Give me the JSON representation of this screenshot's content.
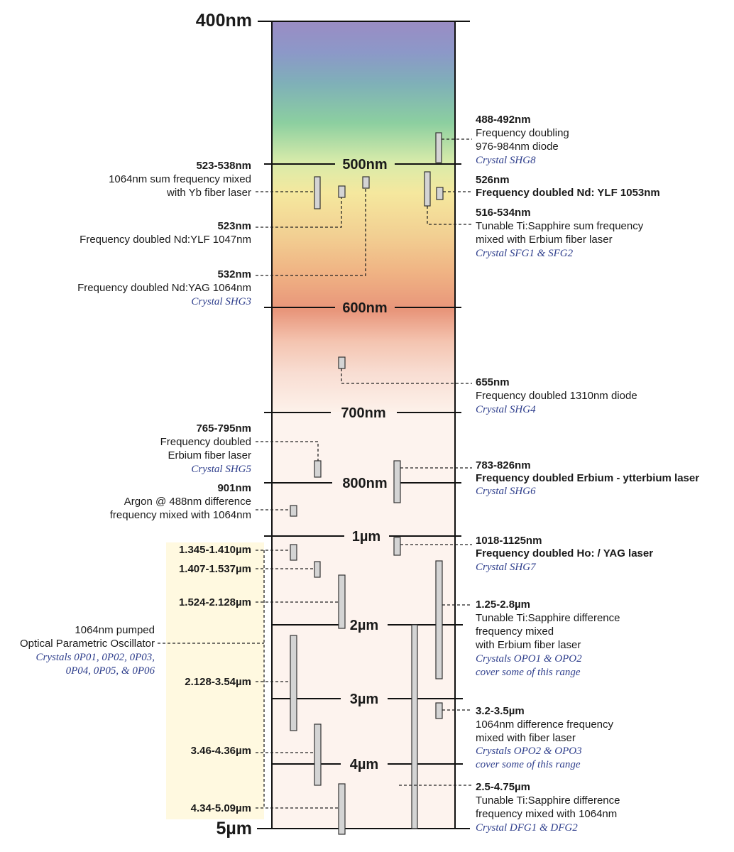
{
  "scale": {
    "labels": [
      "400nm",
      "500nm",
      "600nm",
      "700nm",
      "800nm",
      "1µm",
      "2µm",
      "3µm",
      "4µm",
      "5µm"
    ]
  },
  "annotations": {
    "r488": {
      "range": "488-492nm",
      "desc1": "Frequency doubling",
      "desc2": "976-984nm diode",
      "crystal": "Crystal SHG8"
    },
    "r523_538": {
      "range": "523-538nm",
      "desc1": "1064nm sum frequency mixed",
      "desc2": "with Yb fiber laser"
    },
    "r526": {
      "range": "526nm",
      "desc1": "Frequency doubled Nd: YLF 1053nm"
    },
    "r523": {
      "range": "523nm",
      "desc1": "Frequency doubled Nd:YLF 1047nm"
    },
    "r516": {
      "range": "516-534nm",
      "desc1": "Tunable Ti:Sapphire sum frequency",
      "desc2": "mixed with Erbium fiber laser",
      "crystal": "Crystal SFG1 & SFG2"
    },
    "r532": {
      "range": "532nm",
      "desc1": "Frequency doubled Nd:YAG 1064nm",
      "crystal": "Crystal SHG3"
    },
    "r655": {
      "range": "655nm",
      "desc1": "Frequency doubled 1310nm diode",
      "crystal": "Crystal SHG4"
    },
    "r765": {
      "range": "765-795nm",
      "desc1": "Frequency doubled",
      "desc2": "Erbium fiber laser",
      "crystal": "Crystal SHG5"
    },
    "r783": {
      "range": "783-826nm",
      "desc1": "Frequency doubled Erbium - ytterbium laser",
      "crystal": "Crystal SHG6"
    },
    "r901": {
      "range": "901nm",
      "desc1": "Argon @ 488nm  difference",
      "desc2": "frequency mixed with 1064nm"
    },
    "r1018": {
      "range": "1018-1125nm",
      "desc1": "Frequency doubled Ho: / YAG laser",
      "crystal": "Crystal SHG7"
    },
    "opo": {
      "ranges": [
        "1.345-1.410µm",
        "1.407-1.537µm",
        "1.524-2.128µm",
        "2.128-3.54µm",
        "3.46-4.36µm",
        "4.34-5.09µm"
      ],
      "desc1": "1064nm pumped",
      "desc2": "Optical Parametric Oscillator",
      "crystal1": "Crystals 0P01, 0P02, 0P03,",
      "crystal2": "0P04, 0P05, & 0P06"
    },
    "r125": {
      "range": "1.25-2.8µm",
      "desc1": "Tunable Ti:Sapphire difference",
      "desc2": "frequency mixed",
      "desc3": "with Erbium fiber laser",
      "crystal1": "Crystals OPO1 & OPO2",
      "crystal2": "cover some of this range"
    },
    "r32": {
      "range": "3.2-3.5µm",
      "desc1": "1064nm difference frequency",
      "desc2": "mixed with fiber laser",
      "crystal1": "Crystals OPO2 & OPO3",
      "crystal2": "cover some of this range"
    },
    "r25": {
      "range": "2.5-4.75µm",
      "desc1": "Tunable Ti:Sapphire difference",
      "desc2": "frequency mixed with 1064nm",
      "crystal": "Crystal DFG1 & DFG2"
    }
  },
  "colors": {
    "spectrum_top": "#9a8cc4",
    "spectrum_green": "#8ccfa0",
    "spectrum_yellow": "#f5e89e",
    "spectrum_orange": "#f0b484",
    "spectrum_red": "#e8957a",
    "ir_background": "#fff9e0",
    "crystal_text": "#2e3e8c"
  }
}
